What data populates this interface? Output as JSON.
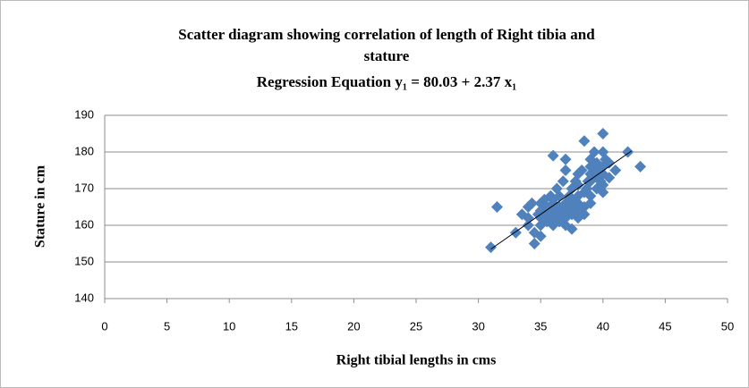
{
  "chart_data": {
    "type": "scatter",
    "title": [
      "Scatter diagram showing correlation of length of Right tibia and",
      "stature",
      "Regression Equation y₁ = 80.03 + 2.37 x₁"
    ],
    "x_label": "Right tibial lengths in cms",
    "y_label": "Stature in cm",
    "xlim": [
      0,
      50
    ],
    "xticks": [
      0,
      5,
      10,
      15,
      20,
      25,
      30,
      35,
      40,
      45,
      50
    ],
    "ylim": [
      140,
      190
    ],
    "yticks": [
      140,
      150,
      160,
      170,
      180,
      190
    ],
    "grid": true,
    "color": "#4f81bd",
    "x": [
      31,
      31.5,
      33,
      33.5,
      34,
      34,
      34,
      34.3,
      34.5,
      34.5,
      34.8,
      35,
      35,
      35,
      35,
      35,
      35.3,
      35.5,
      35.5,
      35.5,
      35.8,
      36,
      36,
      36,
      36,
      36,
      36,
      36.3,
      36.5,
      36.5,
      36.5,
      36.5,
      36.8,
      37,
      37,
      37,
      37,
      37,
      37,
      37.3,
      37.5,
      37.5,
      37.5,
      37.5,
      37.5,
      37.8,
      38,
      38,
      38,
      38,
      38,
      38,
      38.3,
      38.5,
      38.5,
      38.5,
      38.5,
      38.7,
      38.8,
      39,
      39,
      39,
      39,
      39,
      39,
      39.3,
      39.5,
      39.5,
      39.5,
      39.5,
      39.8,
      40,
      40,
      40,
      40,
      40,
      40,
      40.2,
      40.5,
      40.5,
      41,
      42,
      43
    ],
    "values": [
      154,
      165,
      158,
      163,
      160,
      162,
      165,
      166,
      155,
      158,
      163,
      157,
      160,
      162,
      164,
      166,
      167,
      161,
      163,
      165,
      168,
      160,
      162,
      164,
      166,
      167,
      179,
      170,
      161,
      163,
      165,
      168,
      172,
      160,
      162,
      164,
      166,
      175,
      178,
      168,
      159,
      163,
      165,
      167,
      170,
      172,
      162,
      164,
      166,
      168,
      171,
      174,
      175,
      163,
      165,
      169,
      183,
      170,
      172,
      166,
      168,
      172,
      174,
      176,
      178,
      180,
      170,
      173,
      175,
      177,
      172,
      169,
      171,
      174,
      176,
      180,
      185,
      178,
      173,
      177,
      175,
      180,
      176
    ],
    "trendline": {
      "x": [
        31,
        42.3
      ],
      "y": [
        153.5,
        180.3
      ],
      "color": "#000000"
    }
  }
}
